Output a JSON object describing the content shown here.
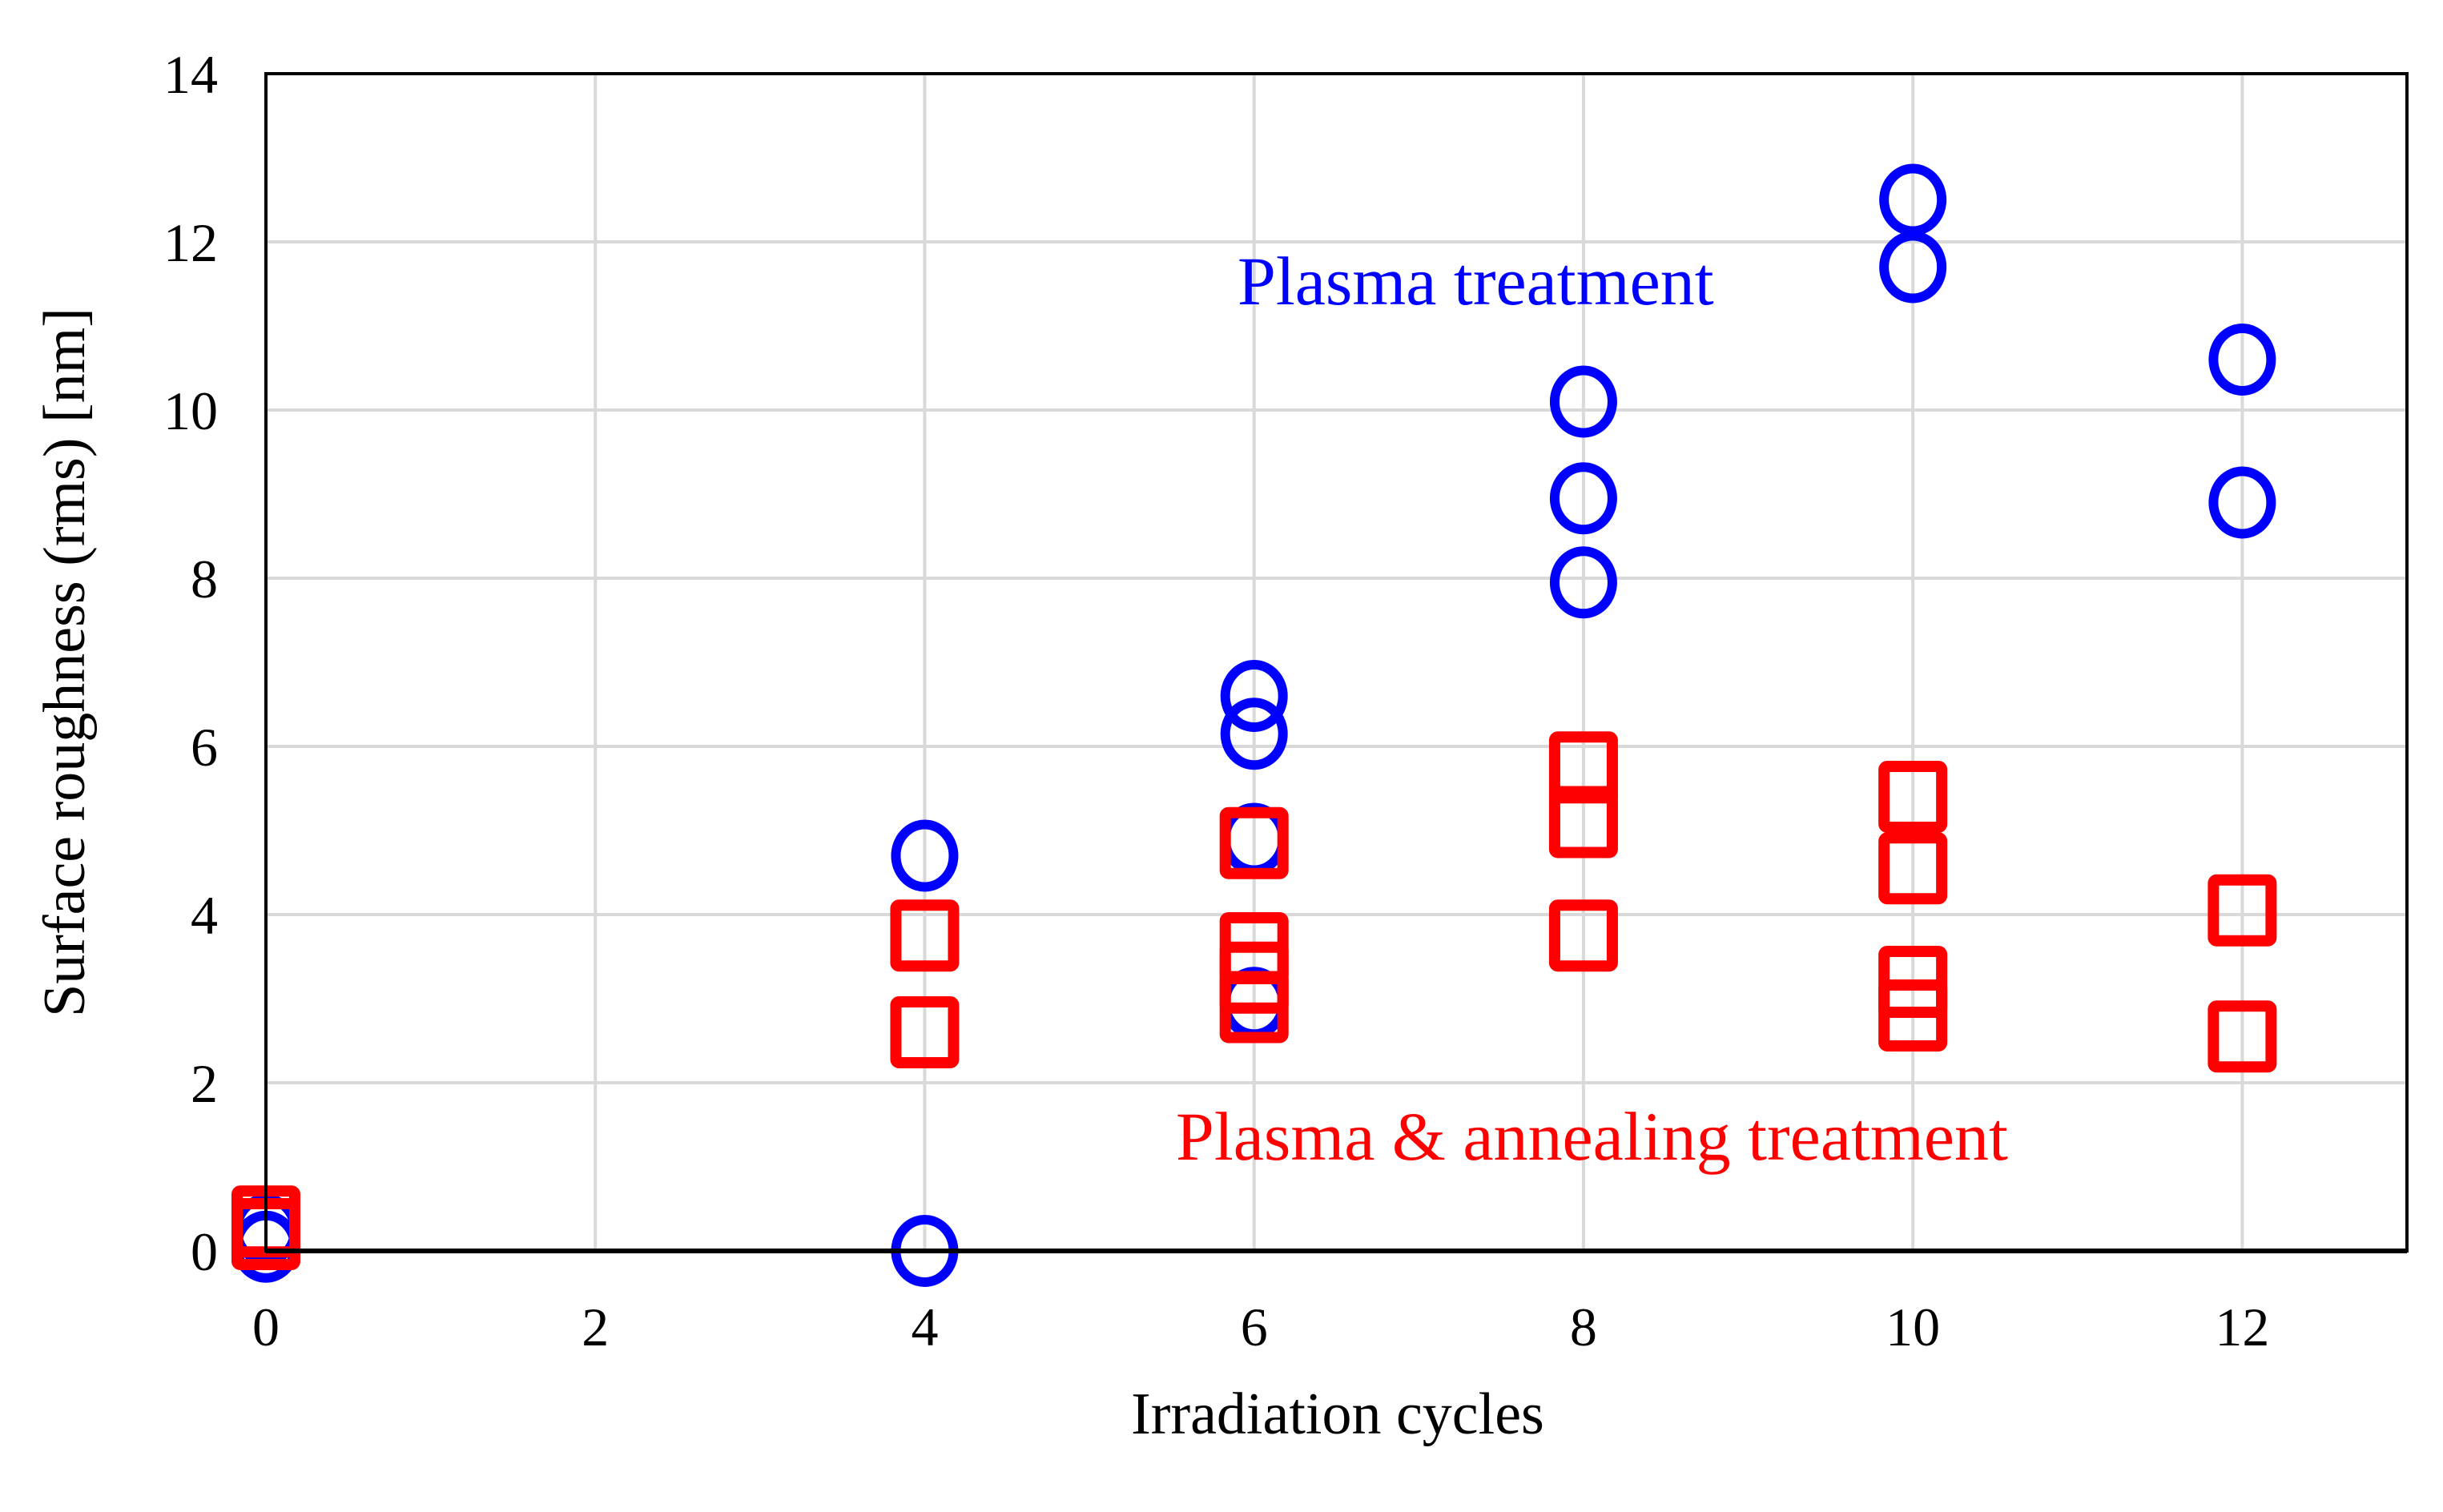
{
  "chart_data": {
    "type": "scatter",
    "title": "",
    "xlabel": "Irradiation cycles",
    "ylabel": "Surface roughness (rms) [nm]",
    "xlim": [
      0,
      13
    ],
    "ylim": [
      0,
      14
    ],
    "xticks": [
      0,
      2,
      4,
      6,
      8,
      10,
      12
    ],
    "yticks": [
      0,
      2,
      4,
      6,
      8,
      10,
      12,
      14
    ],
    "grid": true,
    "series": [
      {
        "name": "Plasma treatment",
        "marker": "circle",
        "color": "#0000ff",
        "points": [
          [
            0,
            0.05
          ],
          [
            0,
            0.25
          ],
          [
            4,
            4.7
          ],
          [
            4,
            0.0
          ],
          [
            6,
            6.6
          ],
          [
            6,
            6.15
          ],
          [
            6,
            4.9
          ],
          [
            6,
            2.95
          ],
          [
            8,
            10.1
          ],
          [
            8,
            8.95
          ],
          [
            8,
            7.95
          ],
          [
            10,
            12.5
          ],
          [
            10,
            11.7
          ],
          [
            12,
            10.6
          ],
          [
            12,
            8.9
          ]
        ]
      },
      {
        "name": "Plasma & annealing treatment",
        "marker": "square",
        "color": "#ff0000",
        "points": [
          [
            0,
            0.35
          ],
          [
            0,
            0.2
          ],
          [
            4,
            3.75
          ],
          [
            4,
            2.6
          ],
          [
            6,
            4.85
          ],
          [
            6,
            3.6
          ],
          [
            6,
            3.25
          ],
          [
            6,
            2.9
          ],
          [
            8,
            5.75
          ],
          [
            8,
            5.1
          ],
          [
            8,
            3.75
          ],
          [
            10,
            5.4
          ],
          [
            10,
            4.55
          ],
          [
            10,
            3.2
          ],
          [
            10,
            2.8
          ],
          [
            12,
            4.05
          ],
          [
            12,
            2.55
          ]
        ]
      }
    ],
    "annotations": [
      {
        "text": "Plasma treatment",
        "color": "#0000ff"
      },
      {
        "text": "Plasma & annealing treatment",
        "color": "#ff0000"
      }
    ],
    "legend": "none"
  }
}
